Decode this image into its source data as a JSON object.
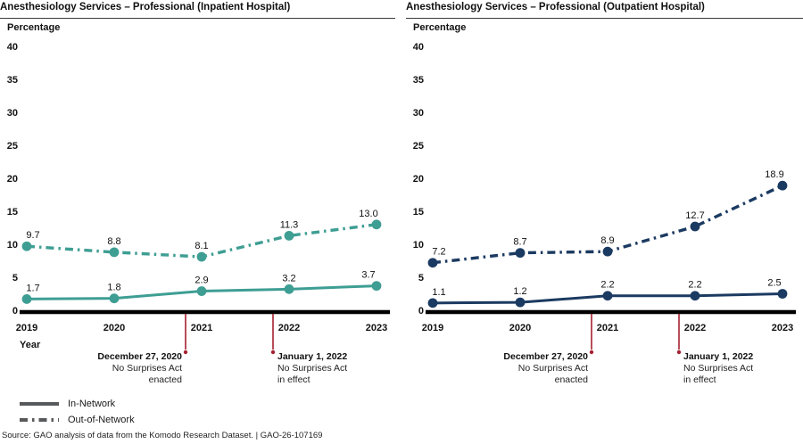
{
  "figure": {
    "source": "Source: GAO analysis of data from the Komodo Research Dataset.  |  GAO-26-107169"
  },
  "legend": [
    {
      "label": "In-Network",
      "style": "solid"
    },
    {
      "label": "Out-of-Network",
      "style": "dash-dot"
    }
  ],
  "colors": {
    "inpatient_teal": "#3e9e93",
    "outpatient_navy": "#1b3a61",
    "annotation_red": "#a62030",
    "legend_gray": "#58595b",
    "axis_black": "#000000"
  },
  "annotations": [
    {
      "date": "December 27, 2020",
      "lines": [
        "No Surprises Act",
        "enacted"
      ],
      "align": "right",
      "at_year": 2021
    },
    {
      "date": "January 1, 2022",
      "lines": [
        "No Surprises Act",
        "in effect"
      ],
      "align": "left",
      "at_year": 2022
    }
  ],
  "chart_data": [
    {
      "type": "line",
      "title": "Anesthesiology Services – Professional (Inpatient Hospital)",
      "ylabel": "Percentage",
      "xlabel": "Year",
      "x": [
        2019,
        2020,
        2021,
        2022,
        2023
      ],
      "ylim": [
        0,
        40
      ],
      "ytick_step": 5,
      "grid": false,
      "legend_position": "bottom-left",
      "series": [
        {
          "name": "Out-of-Network",
          "style": "dash-dot",
          "color": "#3e9e93",
          "values": [
            9.7,
            8.8,
            8.1,
            11.3,
            13.0
          ],
          "labels": [
            "9.7",
            "8.8",
            "8.1",
            "11.3",
            "13.0"
          ]
        },
        {
          "name": "In-Network",
          "style": "solid",
          "color": "#3e9e93",
          "values": [
            1.7,
            1.8,
            2.9,
            3.2,
            3.7
          ],
          "labels": [
            "1.7",
            "1.8",
            "2.9",
            "3.2",
            "3.7"
          ]
        }
      ]
    },
    {
      "type": "line",
      "title": "Anesthesiology Services – Professional (Outpatient Hospital)",
      "ylabel": "Percentage",
      "xlabel": "",
      "x": [
        2019,
        2020,
        2021,
        2022,
        2023
      ],
      "ylim": [
        0,
        40
      ],
      "ytick_step": 5,
      "grid": false,
      "legend_position": "shared-bottom-left",
      "series": [
        {
          "name": "Out-of-Network",
          "style": "dash-dot",
          "color": "#1b3a61",
          "values": [
            7.2,
            8.7,
            8.9,
            12.7,
            18.9
          ],
          "labels": [
            "7.2",
            "8.7",
            "8.9",
            "12.7",
            "18.9"
          ]
        },
        {
          "name": "In-Network",
          "style": "solid",
          "color": "#1b3a61",
          "values": [
            1.1,
            1.2,
            2.2,
            2.2,
            2.5
          ],
          "labels": [
            "1.1",
            "1.2",
            "2.2",
            "2.2",
            "2.5"
          ]
        }
      ]
    }
  ]
}
